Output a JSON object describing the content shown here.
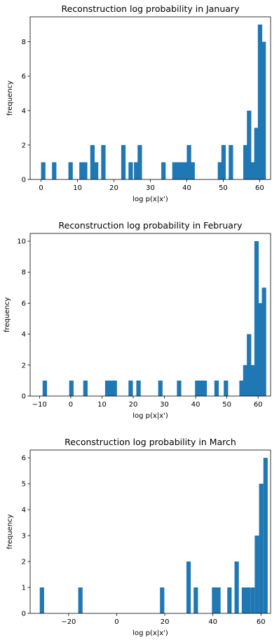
{
  "chart_data": [
    {
      "type": "bar",
      "title": "Reconstruction log probability in January",
      "xlabel": "log p(x|x')",
      "ylabel": "frequency",
      "xlim": [
        -3,
        63
      ],
      "ylim": [
        0,
        9.45
      ],
      "xticks": [
        0,
        10,
        20,
        30,
        40,
        50,
        60
      ],
      "yticks": [
        0,
        2,
        4,
        6,
        8
      ],
      "bin_width": 1.2,
      "bins": [
        {
          "x": 0,
          "count": 1
        },
        {
          "x": 3,
          "count": 1
        },
        {
          "x": 7.5,
          "count": 1
        },
        {
          "x": 10.5,
          "count": 1
        },
        {
          "x": 11.5,
          "count": 1
        },
        {
          "x": 13.5,
          "count": 2
        },
        {
          "x": 14.5,
          "count": 1
        },
        {
          "x": 16.5,
          "count": 2
        },
        {
          "x": 22,
          "count": 2
        },
        {
          "x": 24,
          "count": 1
        },
        {
          "x": 25.5,
          "count": 1
        },
        {
          "x": 26.5,
          "count": 2
        },
        {
          "x": 33,
          "count": 1
        },
        {
          "x": 36,
          "count": 1
        },
        {
          "x": 37,
          "count": 1
        },
        {
          "x": 38,
          "count": 1
        },
        {
          "x": 39,
          "count": 1
        },
        {
          "x": 40,
          "count": 2
        },
        {
          "x": 41,
          "count": 1
        },
        {
          "x": 48.5,
          "count": 1
        },
        {
          "x": 49.5,
          "count": 2
        },
        {
          "x": 51.5,
          "count": 2
        },
        {
          "x": 55.5,
          "count": 2
        },
        {
          "x": 56.5,
          "count": 4
        },
        {
          "x": 57.5,
          "count": 1
        },
        {
          "x": 58.5,
          "count": 3
        },
        {
          "x": 59.5,
          "count": 9
        },
        {
          "x": 60.5,
          "count": 8
        }
      ]
    },
    {
      "type": "bar",
      "title": "Reconstruction log probability in February",
      "xlabel": "log p(x|x')",
      "ylabel": "frequency",
      "xlim": [
        -13,
        64
      ],
      "ylim": [
        0,
        10.5
      ],
      "xticks": [
        -10,
        0,
        10,
        20,
        30,
        40,
        50,
        60
      ],
      "yticks": [
        0,
        2,
        4,
        6,
        8,
        10
      ],
      "bin_width": 1.4,
      "bins": [
        {
          "x": -9,
          "count": 1
        },
        {
          "x": -0.5,
          "count": 1
        },
        {
          "x": 4,
          "count": 1
        },
        {
          "x": 11,
          "count": 1
        },
        {
          "x": 12.2,
          "count": 1
        },
        {
          "x": 13.4,
          "count": 1
        },
        {
          "x": 18.5,
          "count": 1
        },
        {
          "x": 21,
          "count": 1
        },
        {
          "x": 28,
          "count": 1
        },
        {
          "x": 34,
          "count": 1
        },
        {
          "x": 39.8,
          "count": 1
        },
        {
          "x": 41,
          "count": 1
        },
        {
          "x": 42.2,
          "count": 1
        },
        {
          "x": 46,
          "count": 1
        },
        {
          "x": 49,
          "count": 1
        },
        {
          "x": 54,
          "count": 1
        },
        {
          "x": 55.2,
          "count": 2
        },
        {
          "x": 56.4,
          "count": 4
        },
        {
          "x": 57.6,
          "count": 2
        },
        {
          "x": 58.8,
          "count": 10
        },
        {
          "x": 60,
          "count": 6
        },
        {
          "x": 61.2,
          "count": 7
        }
      ]
    },
    {
      "type": "bar",
      "title": "Reconstruction log probability in March",
      "xlabel": "log p(x|x')",
      "ylabel": "frequency",
      "xlim": [
        -36,
        64
      ],
      "ylim": [
        0,
        6.3
      ],
      "xticks": [
        -20,
        0,
        20,
        40,
        60
      ],
      "yticks": [
        0,
        1,
        2,
        3,
        4,
        5,
        6
      ],
      "bin_width": 1.8,
      "bins": [
        {
          "x": -32,
          "count": 1
        },
        {
          "x": -16,
          "count": 1
        },
        {
          "x": 18,
          "count": 1
        },
        {
          "x": 29,
          "count": 2
        },
        {
          "x": 32,
          "count": 1
        },
        {
          "x": 39.6,
          "count": 1
        },
        {
          "x": 41.4,
          "count": 1
        },
        {
          "x": 46,
          "count": 1
        },
        {
          "x": 49,
          "count": 2
        },
        {
          "x": 52,
          "count": 1
        },
        {
          "x": 53.8,
          "count": 1
        },
        {
          "x": 55.6,
          "count": 1
        },
        {
          "x": 57.4,
          "count": 3
        },
        {
          "x": 59.2,
          "count": 5
        },
        {
          "x": 61,
          "count": 6
        }
      ]
    }
  ],
  "colors": {
    "bar": "#1f77b4",
    "axis": "#000000",
    "background": "#ffffff"
  }
}
